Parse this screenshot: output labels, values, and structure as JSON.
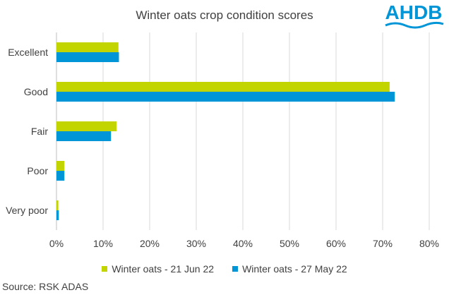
{
  "chart_data": {
    "type": "bar",
    "orientation": "horizontal",
    "title": "Winter oats crop condition scores",
    "categories": [
      "Excellent",
      "Good",
      "Fair",
      "Poor",
      "Very poor"
    ],
    "series": [
      {
        "name": "Winter oats - 21 Jun 22",
        "color": "#c3d500",
        "values": [
          13.3,
          71.5,
          12.9,
          1.7,
          0.4
        ]
      },
      {
        "name": "Winter oats - 27 May 22",
        "color": "#0095d6",
        "values": [
          13.4,
          72.6,
          11.7,
          1.7,
          0.5
        ]
      }
    ],
    "xlim": [
      0,
      80
    ],
    "xticks": [
      0,
      10,
      20,
      30,
      40,
      50,
      60,
      70,
      80
    ],
    "tick_format": "%",
    "grid": true,
    "legend_position": "bottom"
  },
  "logo": {
    "text": "AHDB",
    "color": "#0095d6"
  },
  "source": "Source: RSK ADAS"
}
